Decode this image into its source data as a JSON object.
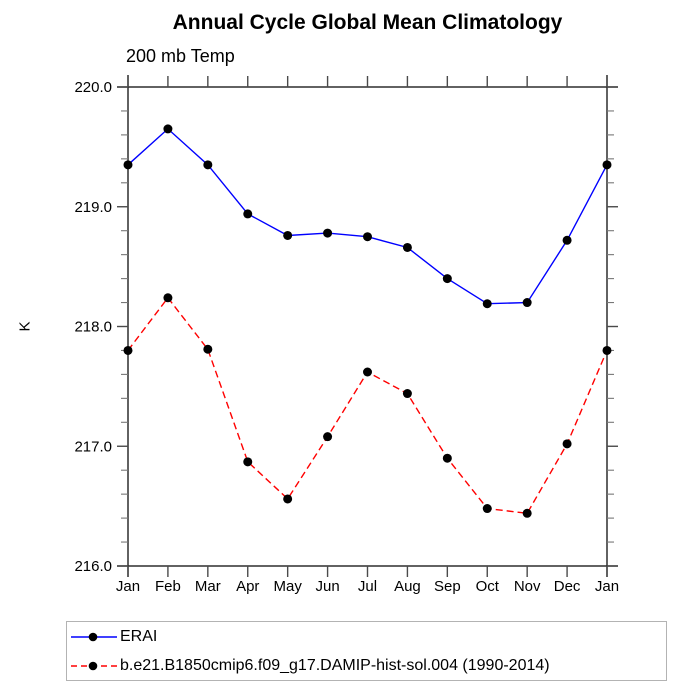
{
  "chart_data": {
    "type": "line",
    "title": "Annual Cycle Global Mean Climatology",
    "subtitle": "200 mb Temp",
    "ylabel": "K",
    "xlabel": "",
    "categories": [
      "Jan",
      "Feb",
      "Mar",
      "Apr",
      "May",
      "Jun",
      "Jul",
      "Aug",
      "Sep",
      "Oct",
      "Nov",
      "Dec",
      "Jan"
    ],
    "ylim": [
      216.0,
      220.0
    ],
    "y_major_ticks": [
      220.0,
      219.0,
      218.0,
      217.0,
      216.0
    ],
    "y_tick_labels": [
      "220.0",
      "219.0",
      "218.0",
      "217.0",
      "216.0"
    ],
    "y_minor_interval": 0.2,
    "grid": false,
    "legend_position": "bottom-left",
    "series": [
      {
        "name": "ERAI",
        "color": "#0000ff",
        "line_style": "solid",
        "marker": "filled-circle",
        "marker_color": "#000000",
        "values": [
          219.35,
          219.65,
          219.35,
          218.94,
          218.76,
          218.78,
          218.75,
          218.66,
          218.4,
          218.19,
          218.2,
          218.72,
          219.35
        ]
      },
      {
        "name": "b.e21.B1850cmip6.f09_g17.DAMIP-hist-sol.004 (1990-2014)",
        "color": "#ff0000",
        "line_style": "dashed",
        "marker": "filled-circle",
        "marker_color": "#000000",
        "values": [
          217.8,
          218.24,
          217.81,
          216.87,
          216.56,
          217.08,
          217.62,
          217.44,
          216.9,
          216.48,
          216.44,
          217.02,
          217.8
        ]
      }
    ],
    "colors": {
      "axis": "#2e2e2e",
      "tick": "#4a4a4a",
      "minor_tick": "#777777",
      "text": "#000000",
      "legend_border": "#b3b3b3"
    }
  }
}
